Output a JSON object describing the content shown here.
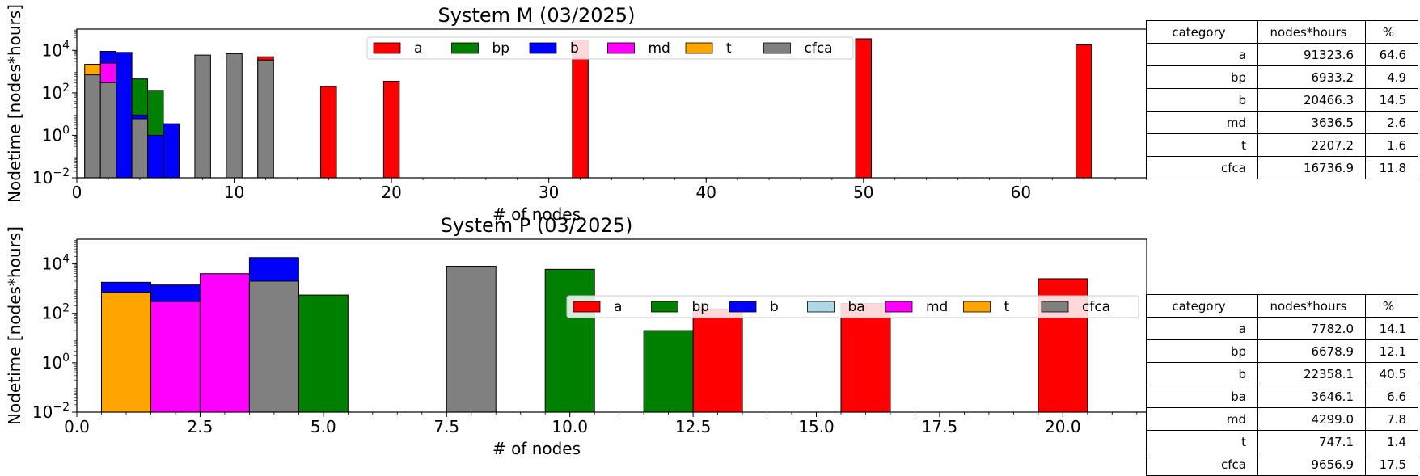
{
  "chart_data": [
    {
      "type": "bar",
      "title": "System M (03/2025)",
      "xlabel": "# of nodes",
      "ylabel": "Nodetime [nodes*hours]",
      "xlim": [
        0,
        68
      ],
      "yscale": "log",
      "ylim": [
        0.01,
        100000
      ],
      "xticks": [
        "0",
        "10",
        "20",
        "30",
        "40",
        "50",
        "60"
      ],
      "xtick_values": [
        0,
        10,
        20,
        30,
        40,
        50,
        60
      ],
      "yticks": [
        "10−2",
        "100",
        "102",
        "104"
      ],
      "ytick_values": [
        0.01,
        1,
        100,
        10000
      ],
      "legend_position": "upper center",
      "bar_width": 1,
      "series": [
        {
          "name": "a",
          "color": "#ff0000",
          "bars": [
            [
              12,
              5000
            ],
            [
              16,
              200
            ],
            [
              20,
              350
            ],
            [
              32,
              30000
            ],
            [
              50,
              35000
            ],
            [
              64,
              18000
            ]
          ]
        },
        {
          "name": "bp",
          "color": "#008000",
          "bars": [
            [
              4,
              450
            ],
            [
              5,
              130
            ]
          ]
        },
        {
          "name": "b",
          "color": "#0000ff",
          "bars": [
            [
              2,
              9000
            ],
            [
              3,
              8000
            ],
            [
              4,
              9
            ],
            [
              5,
              1
            ],
            [
              6,
              3.5
            ]
          ]
        },
        {
          "name": "md",
          "color": "#ff00ff",
          "bars": [
            [
              2,
              2500
            ]
          ]
        },
        {
          "name": "t",
          "color": "#ffa500",
          "bars": [
            [
              1,
              2200
            ]
          ]
        },
        {
          "name": "cfca",
          "color": "#808080",
          "bars": [
            [
              1,
              700
            ],
            [
              2,
              300
            ],
            [
              4,
              6
            ],
            [
              8,
              6000
            ],
            [
              10,
              7000
            ],
            [
              12,
              3500
            ]
          ]
        }
      ],
      "table": {
        "headers": [
          "category",
          "nodes*hours",
          "%"
        ],
        "rows": [
          [
            "a",
            "91323.6",
            "64.6"
          ],
          [
            "bp",
            "6933.2",
            "4.9"
          ],
          [
            "b",
            "20466.3",
            "14.5"
          ],
          [
            "md",
            "3636.5",
            "2.6"
          ],
          [
            "t",
            "2207.2",
            "1.6"
          ],
          [
            "cfca",
            "16736.9",
            "11.8"
          ]
        ]
      }
    },
    {
      "type": "bar",
      "title": "System P (03/2025)",
      "xlabel": "# of nodes",
      "ylabel": "Nodetime [nodes*hours]",
      "xlim": [
        0,
        21.7
      ],
      "yscale": "log",
      "ylim": [
        0.01,
        100000
      ],
      "xticks": [
        "0.0",
        "2.5",
        "5.0",
        "7.5",
        "10.0",
        "12.5",
        "15.0",
        "17.5",
        "20.0"
      ],
      "xtick_values": [
        0,
        2.5,
        5,
        7.5,
        10,
        12.5,
        15,
        17.5,
        20
      ],
      "yticks": [
        "10−2",
        "100",
        "102",
        "104"
      ],
      "ytick_values": [
        0.01,
        1,
        100,
        10000
      ],
      "legend_position": "upper right",
      "bar_width": 1,
      "series": [
        {
          "name": "a",
          "color": "#ff0000",
          "bars": [
            [
              13,
              150
            ],
            [
              16,
              250
            ],
            [
              20,
              2500
            ]
          ]
        },
        {
          "name": "bp",
          "color": "#008000",
          "bars": [
            [
              5,
              550
            ],
            [
              10,
              6000
            ],
            [
              12,
              20
            ]
          ]
        },
        {
          "name": "b",
          "color": "#0000ff",
          "bars": [
            [
              1,
              1800
            ],
            [
              2,
              1400
            ],
            [
              4,
              18000
            ]
          ]
        },
        {
          "name": "ba",
          "color": "#add8e6",
          "bars": []
        },
        {
          "name": "md",
          "color": "#ff00ff",
          "bars": [
            [
              2,
              300
            ],
            [
              3,
              4000
            ]
          ]
        },
        {
          "name": "t",
          "color": "#ffa500",
          "bars": [
            [
              1,
              700
            ]
          ]
        },
        {
          "name": "cfca",
          "color": "#808080",
          "bars": [
            [
              4,
              2000
            ],
            [
              8,
              8000
            ]
          ]
        }
      ],
      "table": {
        "headers": [
          "category",
          "nodes*hours",
          "%"
        ],
        "rows": [
          [
            "a",
            "7782.0",
            "14.1"
          ],
          [
            "bp",
            "6678.9",
            "12.1"
          ],
          [
            "b",
            "22358.1",
            "40.5"
          ],
          [
            "ba",
            "3646.1",
            "6.6"
          ],
          [
            "md",
            "4299.0",
            "7.8"
          ],
          [
            "t",
            "747.1",
            "1.4"
          ],
          [
            "cfca",
            "9656.9",
            "17.5"
          ]
        ]
      }
    }
  ]
}
